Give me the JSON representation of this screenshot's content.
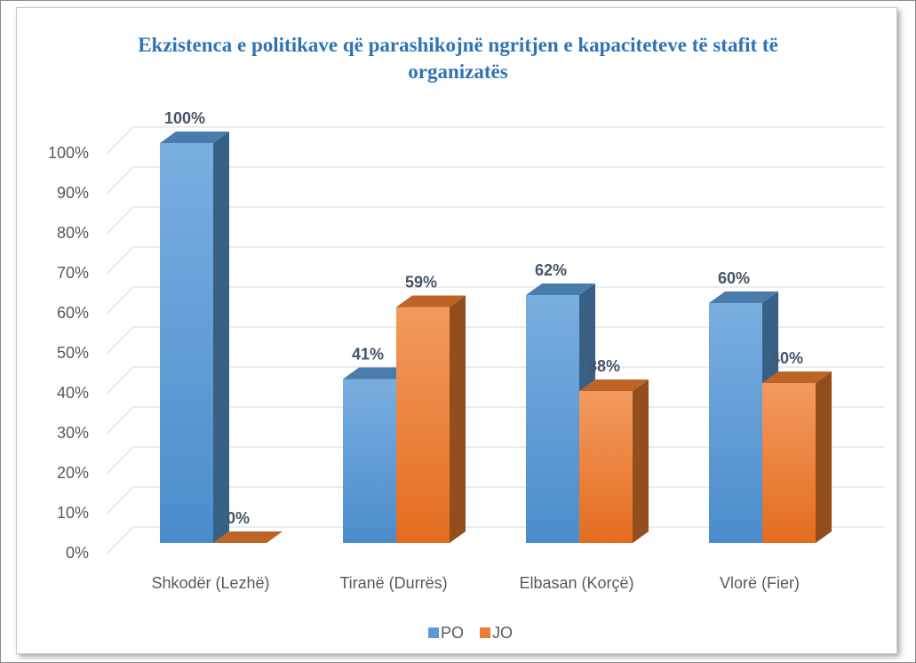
{
  "chart_data": {
    "type": "bar3d",
    "title": "Ekzistenca e politikave që parashikojnë ngritjen e kapaciteteve të stafit të organizatës",
    "categories": [
      "Shkodër (Lezhë)",
      "Tiranë (Durrës)",
      "Elbasan (Korçë)",
      "Vlorë (Fier)"
    ],
    "series": [
      {
        "name": "PO",
        "color": "#5b9bd5",
        "values": [
          100,
          41,
          62,
          60
        ],
        "value_labels": [
          "100%",
          "41%",
          "62%",
          "60%"
        ]
      },
      {
        "name": "JO",
        "color": "#ed7d31",
        "values": [
          0,
          59,
          38,
          40
        ],
        "value_labels": [
          "0%",
          "59%",
          "38%",
          "40%"
        ]
      }
    ],
    "ylim": [
      0,
      100
    ],
    "yticks": [
      {
        "value": 0,
        "label": "0%"
      },
      {
        "value": 10,
        "label": "10%"
      },
      {
        "value": 20,
        "label": "20%"
      },
      {
        "value": 30,
        "label": "30%"
      },
      {
        "value": 40,
        "label": "40%"
      },
      {
        "value": 50,
        "label": "50%"
      },
      {
        "value": 60,
        "label": "60%"
      },
      {
        "value": 70,
        "label": "70%"
      },
      {
        "value": 80,
        "label": "80%"
      },
      {
        "value": 90,
        "label": "90%"
      },
      {
        "value": 100,
        "label": "100%"
      }
    ],
    "grid": true,
    "legend": "bottom"
  }
}
